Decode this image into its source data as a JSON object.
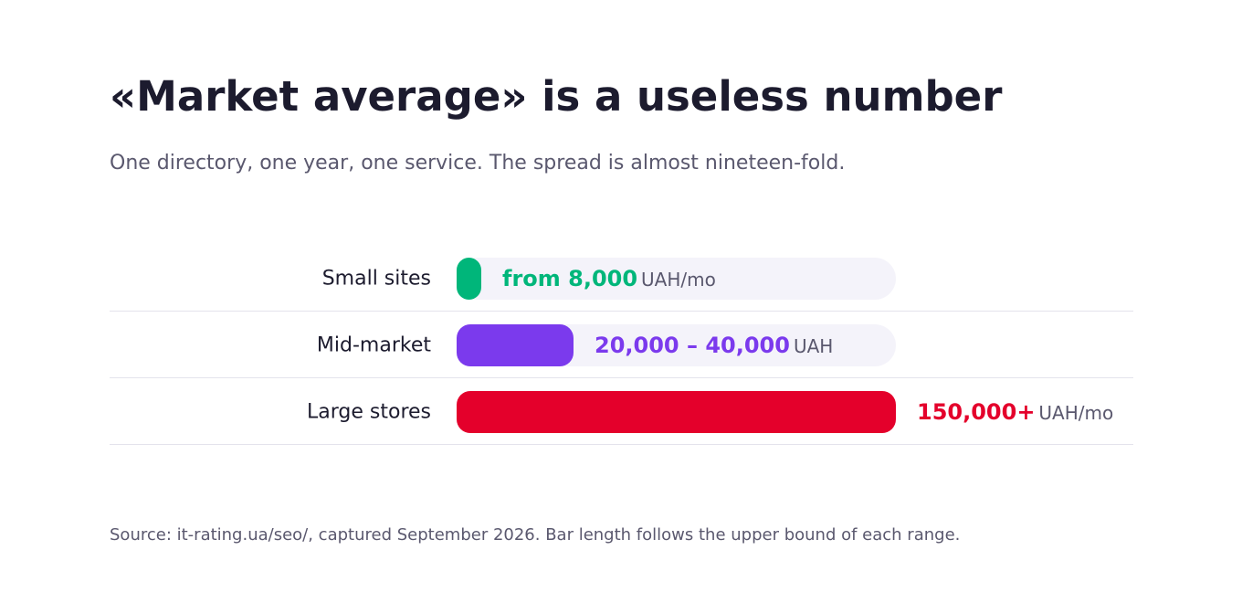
{
  "title": "«Market average» is a useless number",
  "subtitle": "One directory, one year, one service. The spread is almost nineteen-fold.",
  "source": "Source: it-rating.ua/seo/, captured September 2026. Bar length follows the upper bound of each range.",
  "chart_data": {
    "type": "bar",
    "orientation": "horizontal",
    "categories": [
      "Small sites",
      "Mid-market",
      "Large stores"
    ],
    "values": [
      8000,
      40000,
      150000
    ],
    "xlim": [
      0,
      150000
    ],
    "grid": false,
    "title": "",
    "xlabel": "",
    "ylabel": "",
    "labels": [
      {
        "number": "from 8,000",
        "unit": "UAH/mo"
      },
      {
        "number": "20,000 – 40,000",
        "unit": "UAH"
      },
      {
        "number": "150,000+",
        "unit": "UAH/mo"
      }
    ],
    "colors": [
      "#00b67a",
      "#7b3aed",
      "#e4002b"
    ]
  }
}
